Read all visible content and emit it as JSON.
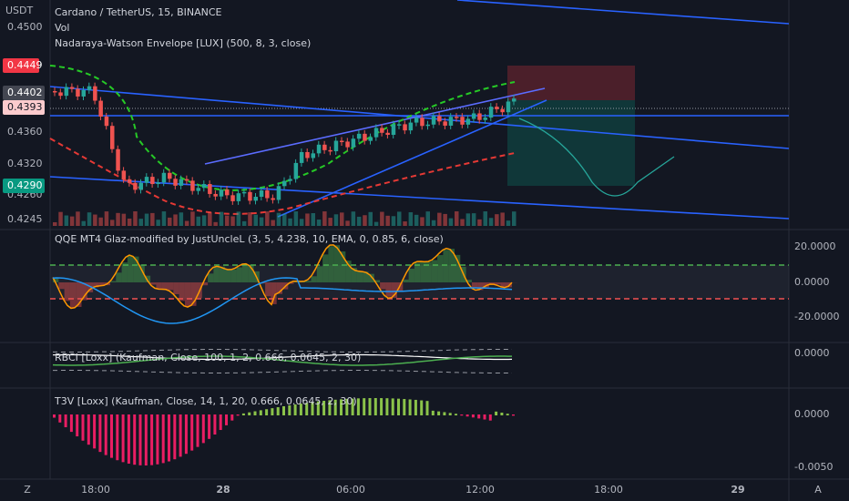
{
  "header": {
    "pair": "Cardano / TetherUS, 15, BINANCE",
    "volume": "Vol",
    "indicator": "Nadaraya-Watson Envelope [LUX] (500, 8, 3, close)"
  },
  "price_axis": {
    "currency": "USDT",
    "labels": [
      "0.4500",
      "0.4360",
      "0.4320",
      "0.4260",
      "0.4245"
    ],
    "badges": {
      "target": "0.4449",
      "last": "0.4402",
      "entry": "0.4393",
      "stop": "0.4290"
    }
  },
  "panels": [
    {
      "title": "QQE MT4 Glaz-modified by JustUncleL (3, 5, 4.238, 10, EMA, 0, 0.85, 6, close)",
      "scale": [
        "20.0000",
        "0.0000",
        "-20.0000"
      ]
    },
    {
      "title": "RBCI [Loxx] (Kaufman, Close, 100, 1, 2, 0.666, 0.0645, 2, 30)",
      "scale": [
        "0.0000"
      ]
    },
    {
      "title": "T3V [Loxx] (Kaufman, Close, 14, 1, 20, 0.666, 0.0645, 2, 30)",
      "scale": [
        "0.0000",
        "-0.0050"
      ]
    }
  ],
  "time_axis": {
    "labels": [
      "18:00",
      "28",
      "06:00",
      "12:00",
      "18:00",
      "29"
    ]
  },
  "footer": {
    "left": "Z",
    "right": "A"
  }
}
